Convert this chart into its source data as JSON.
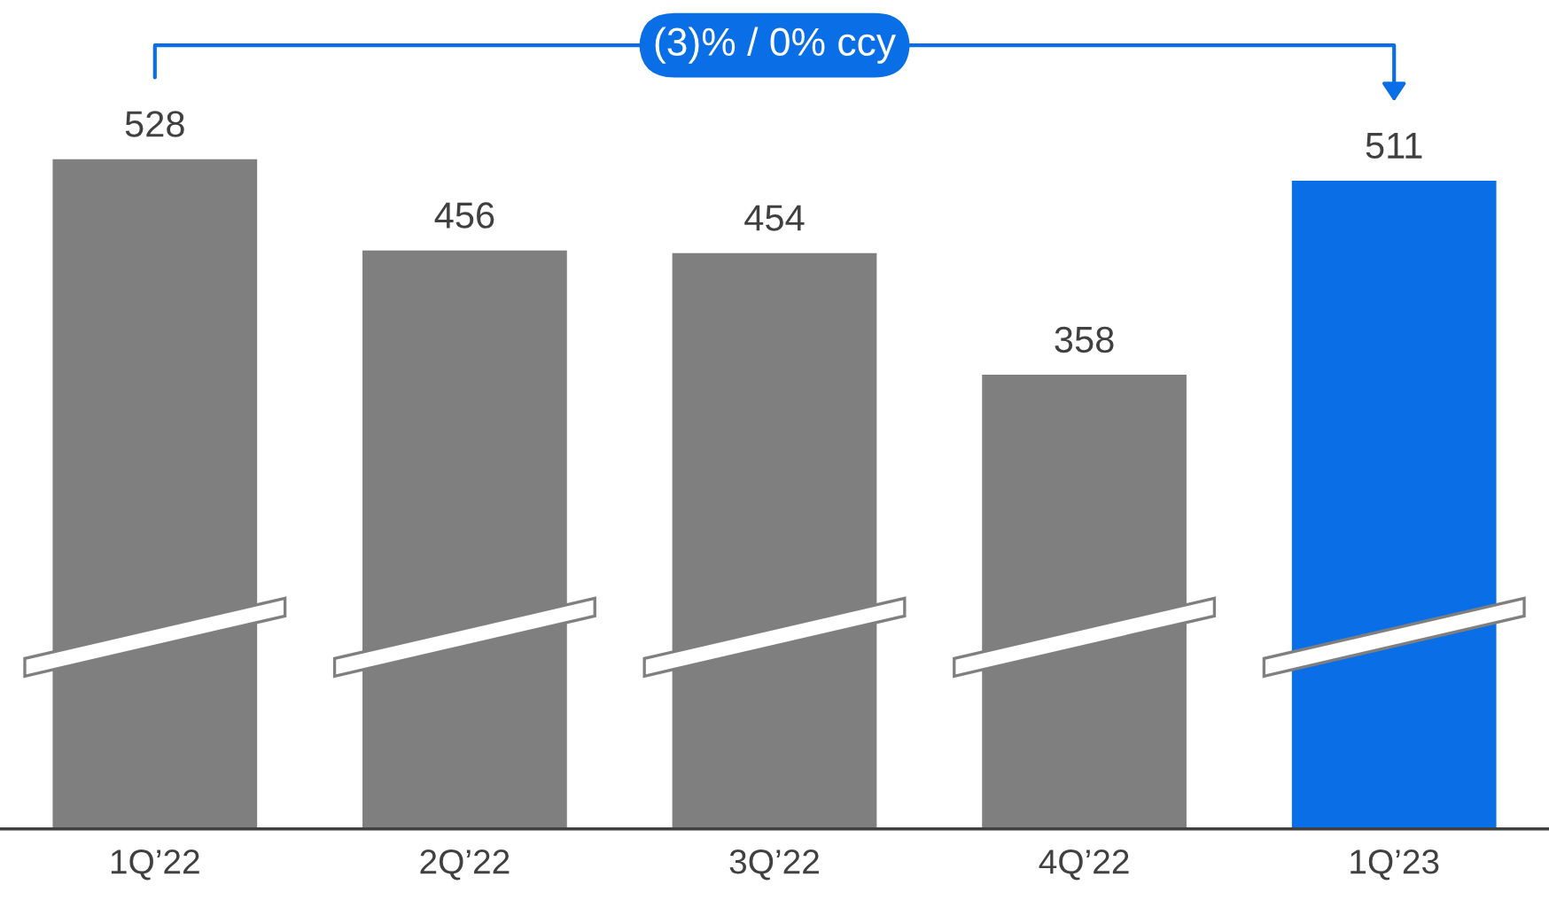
{
  "chart_data": {
    "type": "bar",
    "categories": [
      "1Q’22",
      "2Q’22",
      "3Q’22",
      "4Q’22",
      "1Q’23"
    ],
    "values": [
      528,
      456,
      454,
      358,
      511
    ],
    "colors": [
      "#7f7f7f",
      "#7f7f7f",
      "#7f7f7f",
      "#7f7f7f",
      "#0a6fe6"
    ],
    "data_labels": true,
    "grid": false,
    "tick_labels": "x",
    "annotations": [
      "(3)% / 0% ccy"
    ]
  }
}
